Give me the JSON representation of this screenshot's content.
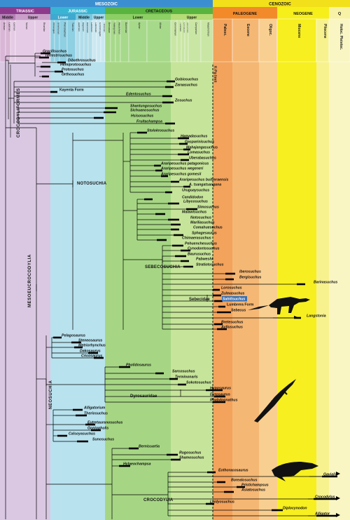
{
  "eras": [
    {
      "label": "MESOZOIC",
      "color": "#3b8fd1"
    },
    {
      "label": "CENOZOIC",
      "color": "#f2e01a"
    }
  ],
  "periods": [
    {
      "label": "TRIASSIC",
      "color": "#8d3a8c",
      "text": "#ffffff"
    },
    {
      "label": "JURASSIC",
      "color": "#3ab4d3",
      "text": "#ffffff"
    },
    {
      "label": "CRETACEOUS",
      "color": "#59b33f",
      "text": "#000000"
    },
    {
      "label": "PALEOGENE",
      "color": "#f28a2a",
      "text": "#000000"
    },
    {
      "label": "NEOGENE",
      "color": "#f7ef1a",
      "text": "#000000"
    },
    {
      "label": "Q",
      "color": "#f7f2a5",
      "text": "#000000"
    }
  ],
  "subperiods": [
    "Middle",
    "Upper",
    "Lower",
    "Middle",
    "Upper",
    "Lower",
    "Upper",
    "Paleoc.",
    "Eocene",
    "Oligoc.",
    "Miocene",
    "Pliocene",
    "Holoc. Pleistoc."
  ],
  "stages": [
    "Anisian",
    "Ladinian",
    "Carnian",
    "Norian",
    "Rhaetian",
    "Hettangian",
    "Sinemurian",
    "Pliensbachian",
    "Toarcian",
    "Aalenian",
    "Bajocian",
    "Bathonian",
    "Callovian",
    "Oxfordian",
    "Kimmeridgian",
    "Tithonian",
    "Berriasian",
    "Valanginian",
    "Hauterivian",
    "Barremian",
    "Aptian",
    "Albian",
    "Cenomanian",
    "Turonian",
    "Coniacian",
    "Santonian",
    "Campanian",
    "Maastrichtian"
  ],
  "boundary_label": "K-Pg limit",
  "clades": {
    "crocodyliformes": "CROCODYLIFORMES",
    "mesoeucrocodylia": "MESOEUCROCODYLIA",
    "notosuchia": "NOTOSUCHIA",
    "sebecosuchia": "SEBECOSUCHIA",
    "sebecidae": "Sebecidae",
    "neosuchia": "NEOSUCHIA",
    "dyrosauridae": "Dyrosauridae",
    "crocodylia": "CROCODYLIA"
  },
  "taxa": [
    "Gracilisuchus",
    "Terrestrisuchus",
    "Dibothrosuchus",
    "Hemiprotosuchus",
    "Protosuchus",
    "Orthosuchus",
    "Gobiosuchus",
    "Zaraasuchus",
    "Kayenta Form",
    "Edentosuchus",
    "Zosuchus",
    "Shantungosuchus",
    "Sichuanosuchus",
    "Hsisosuchus",
    "Fruitachampsa",
    "Stolokrosuchus",
    "Hamadasuchus",
    "Gasparinisuchus",
    "Mahajangasuchus",
    "Lomasuchus",
    "Uberabasuchus",
    "Araripesuchus patagonicus",
    "Araripesuchus wegeneri",
    "Araripesuchus gomesii",
    "Araripesuchus buitreraensis",
    "A. tsangatsangana",
    "Uruguaysuchus",
    "Candidodon",
    "Libycosuchus",
    "Simosuchus",
    "Malawisuchus",
    "Notosuchus",
    "Mariliasuchus",
    "Comahuesuchus",
    "Sphagesaurus",
    "Chimaerasuchus",
    "Pehuenchesuchus",
    "Cynodontosuchus",
    "Baurusuchus",
    "Pabweshi",
    "Stratiotosuchus",
    "Iberosuchus",
    "Bergisuchus",
    "Barinasuchus",
    "Lorosuchus",
    "Zulmasuchus",
    "Sahitisuchus",
    "Lumbrera Form",
    "Sebecus",
    "Langstonia",
    "Bretesuchus",
    "Ayllusuchus",
    "Pelagosaurus",
    "Steneosaurus",
    "Metriorhynchus",
    "Dakosaurus",
    "Cricosaurus",
    "Pholidosaurus",
    "Sarcosuchus",
    "Terminonaris",
    "Sokotosuchus",
    "Hyposaurus",
    "Dyrosaurus",
    "Rhabdognathus",
    "Alligatorium",
    "Theriosuchus",
    "Eutretauranosuchus",
    "Goniopholis",
    "Calsoyasuchus",
    "Sunosuchus",
    "Bernissartia",
    "Rugosuchus",
    "Shamosuchus",
    "Hylaeochampsa",
    "Eothoracosaurus",
    "Gavialis",
    "Borealosuchus",
    "Pristichampsus",
    "Asiatosuchus",
    "Crocodylus",
    "Leidyosuchus",
    "Diplocynodon",
    "Alligator"
  ],
  "colors": {
    "triassic_band": "#d9c6e3",
    "jurassic_band": "#b5e0ec",
    "cretaceous_band_lower": "#9fd27c",
    "cretaceous_band_upper": "#cbe69a",
    "paleogene_band": "#f2a25a",
    "paleogene_band_light": "#f7c37e",
    "neogene_band": "#fbf46d",
    "quaternary_band": "#fbf7c3",
    "highlight": "#3a6fb0"
  }
}
